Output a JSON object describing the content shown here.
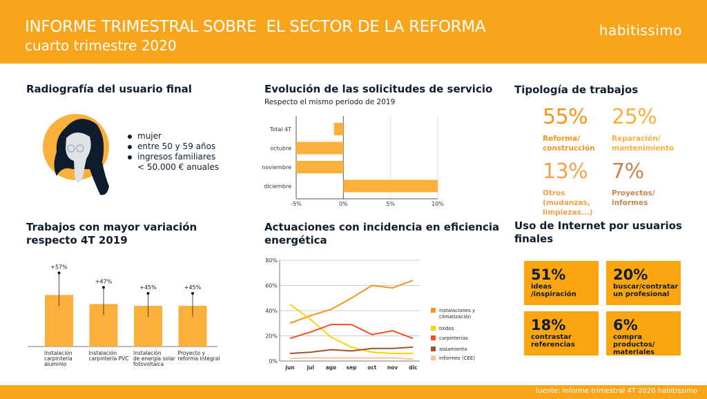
{
  "header": {
    "title": "INFORME TRIMESTRAL SOBRE  EL SECTOR DE LA REFORMA",
    "subtitle": "cuarto trimestre 2020",
    "logo": "habitissimo"
  },
  "footer": {
    "source": "fuente: informe trimestral 4T 2020 habitissimo"
  },
  "colors": {
    "brand": "#f8a51b",
    "bar": "#fbb03b",
    "text": "#0f1c2e"
  },
  "user": {
    "title": "Radiografía del usuario final",
    "items": [
      "mujer",
      "entre 50 y 59 años",
      "ingresos familiares",
      "< 50.000 € anuales"
    ]
  },
  "typology": {
    "title": "Tipología de trabajos",
    "items": [
      {
        "value": "55%",
        "label1": "Reforma/",
        "label2": "construcción",
        "label3": "",
        "color": "#f7931e"
      },
      {
        "value": "25%",
        "label1": "Reparación/",
        "label2": "mantenimiento",
        "label3": "",
        "color": "#fbb03b"
      },
      {
        "value": "13%",
        "label1": "Otros",
        "label2": "(mudanzas,",
        "label3": "limpiezas...)",
        "color": "#f5a04a"
      },
      {
        "value": "7%",
        "label1": "Proyectos/",
        "label2": "informes",
        "label3": "",
        "color": "#c8844f"
      }
    ]
  },
  "internet": {
    "title1": "Uso de Internet por usuarios",
    "title2": "finales",
    "items": [
      {
        "value": "51%",
        "label1": "ideas /inspiración",
        "label2": ""
      },
      {
        "value": "20%",
        "label1": "buscar/contratar",
        "label2": "un profesional"
      },
      {
        "value": "18%",
        "label1": "contrastar",
        "label2": "referencias"
      },
      {
        "value": "6%",
        "label1": "compra productos/",
        "label2": "materiales"
      }
    ]
  },
  "chart_data": [
    {
      "type": "bar",
      "orientation": "horizontal",
      "title": "Evolución de las solicitudes de servicio",
      "subtitle": "Respecto el mismo periodo de 2019",
      "categories": [
        "Total 4T",
        "octubre",
        "noviembre",
        "diciembre"
      ],
      "values": [
        -1,
        -5,
        -5,
        10
      ],
      "xlim": [
        -5,
        10
      ],
      "xticks": [
        "-5%",
        "0%",
        "5%",
        "10%"
      ],
      "grid": true
    },
    {
      "type": "bar",
      "title1": "Trabajos con mayor variación",
      "title2": "respecto 4T 2019",
      "categories": [
        [
          "Instalación",
          "carpintería",
          "aluminio"
        ],
        [
          "Instalación",
          "carpintería PVC",
          ""
        ],
        [
          "Instalación",
          "de energía solar",
          "fotovoltaica"
        ],
        [
          "Proyecto y",
          "reforma integral",
          ""
        ]
      ],
      "values": [
        57,
        47,
        45,
        45
      ],
      "labels": [
        "+57%",
        "+47%",
        "+45%",
        "+45%"
      ]
    },
    {
      "type": "line",
      "title1": "Actuaciones con incidencia en eficiencia",
      "title2": "energética",
      "x": [
        "jun",
        "jul",
        "ago",
        "sep",
        "oct",
        "nov",
        "dic"
      ],
      "ylim": [
        0,
        80
      ],
      "yticks": [
        "0%",
        "20%",
        "40%",
        "60%",
        "80%"
      ],
      "grid": true,
      "legend": "right",
      "series": [
        {
          "name": "instalaciones y",
          "name2": "climatización",
          "color": "#f7931e",
          "values": [
            30,
            36,
            41,
            50,
            60,
            58,
            64
          ]
        },
        {
          "name": "toldos",
          "name2": "",
          "color": "#ffd200",
          "values": [
            45,
            33,
            19,
            11,
            7,
            6,
            6
          ]
        },
        {
          "name": "carpinterías",
          "name2": "",
          "color": "#ff4b1f",
          "values": [
            18,
            23,
            29,
            29,
            21,
            24,
            18
          ]
        },
        {
          "name": "aislamiento",
          "name2": "",
          "color": "#a0522d",
          "values": [
            6,
            7,
            9,
            8,
            10,
            10,
            11
          ]
        },
        {
          "name": "informes (CEE)",
          "name2": "",
          "color": "#f9c09a",
          "values": [
            2,
            2.5,
            2.5,
            2.5,
            2.5,
            2.5,
            1.5
          ]
        }
      ]
    }
  ]
}
